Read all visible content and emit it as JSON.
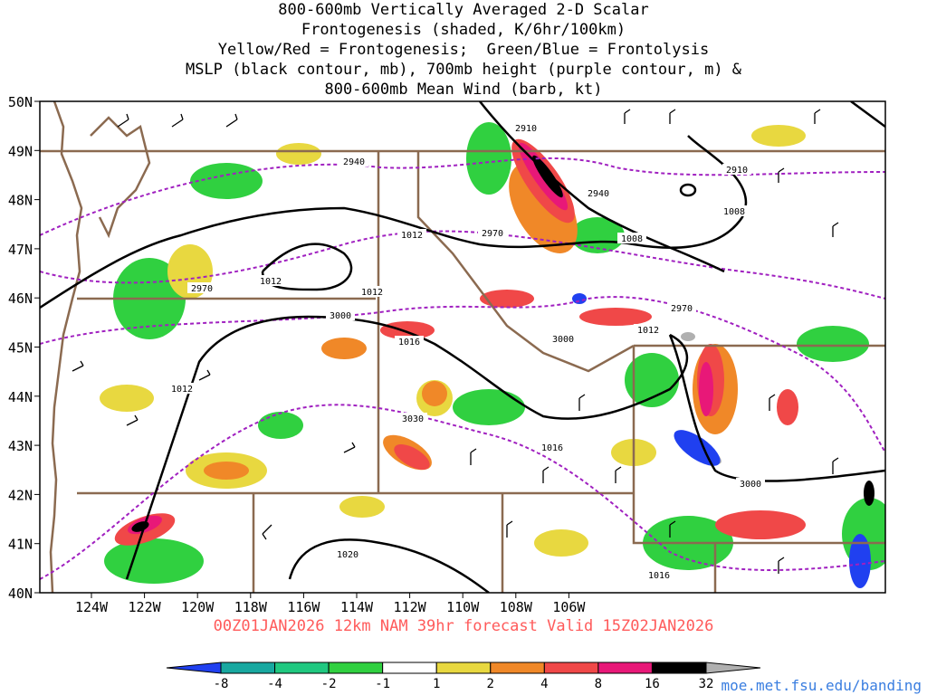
{
  "title_lines": [
    "800-600mb Vertically Averaged 2-D Scalar",
    "Frontogenesis (shaded, K/6hr/100km)",
    "Yellow/Red = Frontogenesis;  Green/Blue = Frontolysis",
    "MSLP (black contour, mb), 700mb height (purple contour, m) &",
    "800-600mb Mean Wind (barb, kt)"
  ],
  "lat_labels": [
    "50N",
    "49N",
    "48N",
    "47N",
    "46N",
    "45N",
    "44N",
    "43N",
    "42N",
    "41N",
    "40N"
  ],
  "lon_labels": [
    "124W",
    "122W",
    "120W",
    "118W",
    "116W",
    "114W",
    "112W",
    "110W",
    "108W",
    "106W"
  ],
  "footer": "00Z01JAN2026 12km NAM 39hr forecast Valid 15Z02JAN2026",
  "source": "moe.met.fsu.edu/banding",
  "colorbar": {
    "labels": [
      "-8",
      "-4",
      "-2",
      "-1",
      "1",
      "2",
      "4",
      "8",
      "16",
      "32"
    ],
    "colors": [
      "#2040f0",
      "#18a8a0",
      "#20c880",
      "#30d040",
      "#ffffff",
      "#e8d840",
      "#f08828",
      "#f04848",
      "#e81878",
      "#000000",
      "#b0b0b0"
    ]
  },
  "contour_labels": {
    "mslp": [
      "1012",
      "1012",
      "1012",
      "1012",
      "1008",
      "1008",
      "1016",
      "1016",
      "1016",
      "1020",
      "1012"
    ],
    "height": [
      "2940",
      "2940",
      "2910",
      "2910",
      "2970",
      "2970",
      "2970",
      "3000",
      "3000",
      "3000",
      "3030"
    ]
  },
  "colors": {
    "height_contour": "#a020c0",
    "mslp_contour": "#000000",
    "border": "#8b6a50",
    "footer": "#ff5a5a",
    "source": "#3a7ee0"
  }
}
